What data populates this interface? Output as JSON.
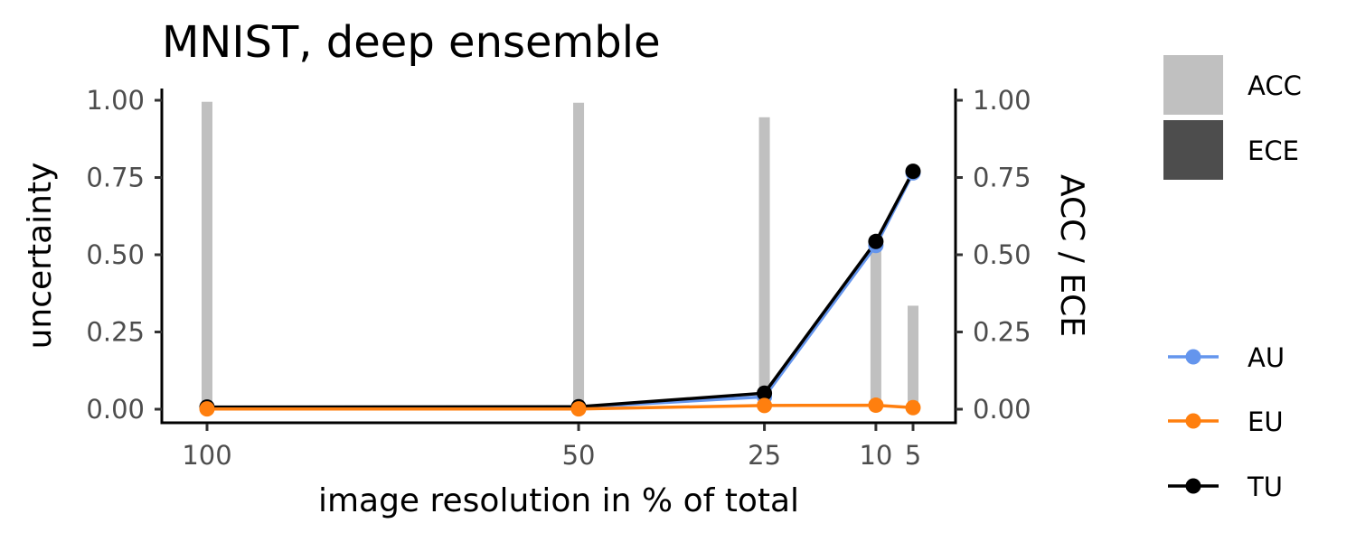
{
  "chart_data": {
    "type": "bar+line",
    "title": "MNIST, deep ensemble",
    "xlabel": "image resolution in % of total",
    "ylabel": "uncertainty",
    "ylabel_right": "ACC / ECE",
    "ylim": [
      0,
      1
    ],
    "x_reversed": true,
    "x_ticks": [
      100,
      50,
      25,
      10,
      5
    ],
    "x_tick_labels": [
      "100",
      "50",
      "25",
      "10",
      "5"
    ],
    "y_ticks": [
      0,
      0.25,
      0.5,
      0.75,
      1
    ],
    "y_tick_labels": [
      "0.00",
      "0.25",
      "0.50",
      "0.75",
      "1.00"
    ],
    "bars": [
      {
        "name": "ACC",
        "color": "#c0c0c0",
        "x": [
          100,
          50,
          25,
          10,
          5
        ],
        "values": [
          0.995,
          0.992,
          0.945,
          0.53,
          0.335
        ]
      },
      {
        "name": "ECE",
        "color": "#4d4d4d",
        "x": [
          100,
          50,
          25,
          10,
          5
        ],
        "values": [
          0.002,
          0.003,
          0.012,
          0.025,
          0.012
        ]
      }
    ],
    "series": [
      {
        "name": "AU",
        "color": "#6495ed",
        "x": [
          100,
          50,
          25,
          10,
          5
        ],
        "values": [
          0.006,
          0.006,
          0.04,
          0.53,
          0.765
        ]
      },
      {
        "name": "EU",
        "color": "#ff7f0e",
        "x": [
          100,
          50,
          25,
          10,
          5
        ],
        "values": [
          0.001,
          0.001,
          0.012,
          0.013,
          0.005
        ]
      },
      {
        "name": "TU",
        "color": "#000000",
        "x": [
          100,
          50,
          25,
          10,
          5
        ],
        "values": [
          0.007,
          0.008,
          0.052,
          0.543,
          0.77
        ]
      }
    ],
    "legend": {
      "bars": [
        {
          "label": "ACC",
          "color": "#c0c0c0"
        },
        {
          "label": "ECE",
          "color": "#4d4d4d"
        }
      ],
      "lines": [
        {
          "label": "AU",
          "color": "#6495ed"
        },
        {
          "label": "EU",
          "color": "#ff7f0e"
        },
        {
          "label": "TU",
          "color": "#000000"
        }
      ],
      "position": "right"
    },
    "grid": false
  }
}
